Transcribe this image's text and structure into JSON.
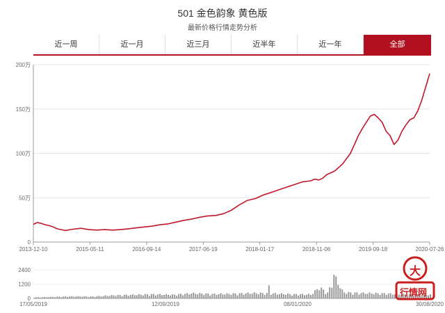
{
  "header": {
    "title": "501 金色韵象 黄色版",
    "subtitle": "最新价格行情走势分析"
  },
  "tabs": [
    {
      "label": "近一周",
      "active": false
    },
    {
      "label": "近一月",
      "active": false
    },
    {
      "label": "近三月",
      "active": false
    },
    {
      "label": "近半年",
      "active": false
    },
    {
      "label": "近一年",
      "active": false
    },
    {
      "label": "全部",
      "active": true
    }
  ],
  "colors": {
    "accent": "#b01020",
    "line": "#c0152a",
    "volume": "#999999"
  },
  "logo": {
    "text_top": "大",
    "text_bottom": "行情网"
  },
  "chart_data": [
    {
      "type": "line",
      "title": "",
      "xlabel": "",
      "ylabel": "",
      "x_ticks": [
        "2013-12-10",
        "2015-05-11",
        "2016-09-14",
        "2017-06-19",
        "2018-01-17",
        "2018-11-06",
        "2019-09-18",
        "2020-07-26"
      ],
      "y_ticks": [
        "0",
        "50万",
        "100万",
        "150万",
        "200万"
      ],
      "ylim": [
        0,
        2000000
      ],
      "grid": true,
      "series": [
        {
          "t": [
            0,
            0.01,
            0.02,
            0.03,
            0.04,
            0.05,
            0.06,
            0.08,
            0.1,
            0.12,
            0.14,
            0.16,
            0.18,
            0.2,
            0.22,
            0.24,
            0.26,
            0.28,
            0.3,
            0.32,
            0.34,
            0.36,
            0.38,
            0.4,
            0.42,
            0.44,
            0.46,
            0.48,
            0.5,
            0.52,
            0.54,
            0.56,
            0.57,
            0.58,
            0.6,
            0.62,
            0.64,
            0.66,
            0.68,
            0.7,
            0.71,
            0.72,
            0.73,
            0.74,
            0.76,
            0.78,
            0.8,
            0.81,
            0.82,
            0.83,
            0.84,
            0.85,
            0.86,
            0.87,
            0.88,
            0.89,
            0.9,
            0.91,
            0.92,
            0.93,
            0.94,
            0.95,
            0.96,
            0.97,
            0.98,
            0.99,
            1.0
          ],
          "values": [
            200000,
            220000,
            210000,
            195000,
            185000,
            170000,
            150000,
            130000,
            145000,
            155000,
            140000,
            135000,
            140000,
            135000,
            140000,
            150000,
            160000,
            170000,
            180000,
            195000,
            205000,
            225000,
            245000,
            260000,
            280000,
            295000,
            300000,
            320000,
            360000,
            420000,
            470000,
            490000,
            510000,
            530000,
            560000,
            590000,
            620000,
            650000,
            680000,
            690000,
            710000,
            700000,
            720000,
            760000,
            800000,
            880000,
            1000000,
            1100000,
            1200000,
            1280000,
            1350000,
            1420000,
            1440000,
            1400000,
            1350000,
            1250000,
            1200000,
            1100000,
            1150000,
            1250000,
            1320000,
            1380000,
            1400000,
            1480000,
            1600000,
            1750000,
            1900000
          ]
        }
      ]
    },
    {
      "type": "bar",
      "title": "",
      "x_ticks": [
        "17/05/2019",
        "12/09/2019",
        "08/01/2020",
        "30/08/2020"
      ],
      "y_ticks": [
        "0",
        "1200",
        "2400"
      ],
      "ylim": [
        0,
        3000
      ],
      "description_free": true,
      "series": [
        {
          "t": [
            0.02,
            0.05,
            0.1,
            0.15,
            0.2,
            0.25,
            0.3,
            0.35,
            0.4,
            0.45,
            0.5,
            0.55,
            0.6,
            0.65,
            0.7,
            0.72,
            0.74,
            0.76,
            0.78,
            0.8,
            0.82,
            0.85,
            0.88,
            0.9,
            0.92,
            0.95,
            0.98
          ],
          "values": [
            120,
            150,
            200,
            180,
            300,
            350,
            400,
            350,
            500,
            420,
            450,
            520,
            480,
            400,
            380,
            1100,
            500,
            2000,
            600,
            550,
            520,
            500,
            480,
            450,
            400,
            380,
            350
          ]
        }
      ]
    }
  ]
}
